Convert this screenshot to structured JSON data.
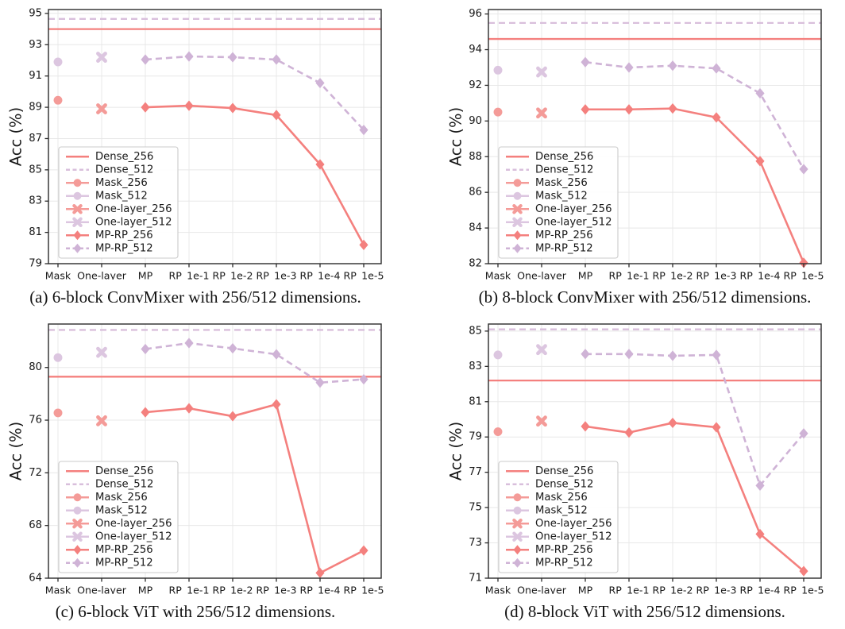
{
  "figure_title": "",
  "series_styles": {
    "Dense_256": {
      "color": "#F4807E",
      "marker": "none",
      "dash": false
    },
    "Dense_512": {
      "color": "#D9BFDC",
      "marker": "none",
      "dash": true
    },
    "Mask_256": {
      "color": "#F49B98",
      "marker": "circle",
      "dash": false
    },
    "Mask_512": {
      "color": "#DCC6E0",
      "marker": "circle",
      "dash": false
    },
    "One-layer_256": {
      "color": "#F49B98",
      "marker": "x",
      "dash": false
    },
    "One-layer_512": {
      "color": "#DCC6E0",
      "marker": "x",
      "dash": false
    },
    "MP-RP_256": {
      "color": "#F4807E",
      "marker": "diamond",
      "dash": false
    },
    "MP-RP_512": {
      "color": "#CFB3D6",
      "marker": "diamond",
      "dash": true
    }
  },
  "legend_order": [
    "Dense_256",
    "Dense_512",
    "Mask_256",
    "Mask_512",
    "One-layer_256",
    "One-layer_512",
    "MP-RP_256",
    "MP-RP_512"
  ],
  "palette": {
    "grid": "#E8E8E8",
    "spine": "#2B2B2B",
    "tick_text": "#191919",
    "legend_border": "#CBCBCB",
    "legend_bg": "rgba(255,255,255,0.92)"
  },
  "chart_data": [
    {
      "type": "line",
      "caption": "(a) 6-block ConvMixer with 256/512 dimensions.",
      "ylabel": "Acc (%)",
      "categories": [
        "Mask",
        "One-layer",
        "MP",
        "RP_1e-1",
        "RP_1e-2",
        "RP_1e-3",
        "RP_1e-4",
        "RP_1e-5"
      ],
      "ylim": [
        79,
        95.25
      ],
      "yticks": [
        79,
        81,
        83,
        85,
        87,
        89,
        91,
        93,
        95
      ],
      "series": [
        {
          "name": "Dense_256",
          "style": "hline",
          "value": 94.0
        },
        {
          "name": "Dense_512",
          "style": "hline",
          "value": 94.65
        },
        {
          "name": "Mask_256",
          "style": "point",
          "category": "Mask",
          "value": 89.45
        },
        {
          "name": "Mask_512",
          "style": "point",
          "category": "Mask",
          "value": 91.9
        },
        {
          "name": "One-layer_256",
          "style": "point",
          "category": "One-layer",
          "value": 88.9
        },
        {
          "name": "One-layer_512",
          "style": "point",
          "category": "One-layer",
          "value": 92.2
        },
        {
          "name": "MP-RP_256",
          "style": "line",
          "start_category": "MP",
          "values": [
            89.0,
            89.1,
            88.95,
            88.5,
            85.35,
            80.2
          ]
        },
        {
          "name": "MP-RP_512",
          "style": "line",
          "start_category": "MP",
          "values": [
            92.05,
            92.25,
            92.2,
            92.05,
            90.55,
            87.55
          ]
        }
      ]
    },
    {
      "type": "line",
      "caption": "(b) 8-block ConvMixer with 256/512 dimensions.",
      "ylabel": "Acc (%)",
      "categories": [
        "Mask",
        "One-layer",
        "MP",
        "RP_1e-1",
        "RP_1e-2",
        "RP_1e-3",
        "RP_1e-4",
        "RP_1e-5"
      ],
      "ylim": [
        82,
        96.25
      ],
      "yticks": [
        82,
        84,
        86,
        88,
        90,
        92,
        94,
        96
      ],
      "series": [
        {
          "name": "Dense_256",
          "style": "hline",
          "value": 94.6
        },
        {
          "name": "Dense_512",
          "style": "hline",
          "value": 95.5
        },
        {
          "name": "Mask_256",
          "style": "point",
          "category": "Mask",
          "value": 90.5
        },
        {
          "name": "Mask_512",
          "style": "point",
          "category": "Mask",
          "value": 92.85
        },
        {
          "name": "One-layer_256",
          "style": "point",
          "category": "One-layer",
          "value": 90.45
        },
        {
          "name": "One-layer_512",
          "style": "point",
          "category": "One-layer",
          "value": 92.75
        },
        {
          "name": "MP-RP_256",
          "style": "line",
          "start_category": "MP",
          "values": [
            90.65,
            90.65,
            90.7,
            90.2,
            87.75,
            82.05
          ]
        },
        {
          "name": "MP-RP_512",
          "style": "line",
          "start_category": "MP",
          "values": [
            93.3,
            93.0,
            93.1,
            92.95,
            91.55,
            87.3
          ]
        }
      ]
    },
    {
      "type": "line",
      "caption": "(c) 6-block ViT with 256/512 dimensions.",
      "ylabel": "Acc (%)",
      "categories": [
        "Mask",
        "One-layer",
        "MP",
        "RP_1e-1",
        "RP_1e-2",
        "RP_1e-3",
        "RP_1e-4",
        "RP_1e-5"
      ],
      "ylim": [
        64,
        83.3
      ],
      "yticks": [
        64,
        68,
        72,
        76,
        80
      ],
      "series": [
        {
          "name": "Dense_256",
          "style": "hline",
          "value": 79.3
        },
        {
          "name": "Dense_512",
          "style": "hline",
          "value": 82.85
        },
        {
          "name": "Mask_256",
          "style": "point",
          "category": "Mask",
          "value": 76.55
        },
        {
          "name": "Mask_512",
          "style": "point",
          "category": "Mask",
          "value": 80.75
        },
        {
          "name": "One-layer_256",
          "style": "point",
          "category": "One-layer",
          "value": 75.95
        },
        {
          "name": "One-layer_512",
          "style": "point",
          "category": "One-layer",
          "value": 81.15
        },
        {
          "name": "MP-RP_256",
          "style": "line",
          "start_category": "MP",
          "values": [
            76.6,
            76.9,
            76.3,
            77.2,
            64.4,
            66.1
          ]
        },
        {
          "name": "MP-RP_512",
          "style": "line",
          "start_category": "MP",
          "values": [
            81.4,
            81.85,
            81.45,
            81.0,
            78.85,
            79.1
          ]
        }
      ]
    },
    {
      "type": "line",
      "caption": "(d) 8-block ViT with 256/512 dimensions.",
      "ylabel": "Acc (%)",
      "categories": [
        "Mask",
        "One-layer",
        "MP",
        "RP_1e-1",
        "RP_1e-2",
        "RP_1e-3",
        "RP_1e-4",
        "RP_1e-5"
      ],
      "ylim": [
        71,
        85.4
      ],
      "yticks": [
        71,
        73,
        75,
        77,
        79,
        81,
        83,
        85
      ],
      "series": [
        {
          "name": "Dense_256",
          "style": "hline",
          "value": 82.2
        },
        {
          "name": "Dense_512",
          "style": "hline",
          "value": 85.1
        },
        {
          "name": "Mask_256",
          "style": "point",
          "category": "Mask",
          "value": 79.3
        },
        {
          "name": "Mask_512",
          "style": "point",
          "category": "Mask",
          "value": 83.65
        },
        {
          "name": "One-layer_256",
          "style": "point",
          "category": "One-layer",
          "value": 79.9
        },
        {
          "name": "One-layer_512",
          "style": "point",
          "category": "One-layer",
          "value": 83.95
        },
        {
          "name": "MP-RP_256",
          "style": "line",
          "start_category": "MP",
          "values": [
            79.6,
            79.25,
            79.8,
            79.55,
            73.5,
            71.4
          ]
        },
        {
          "name": "MP-RP_512",
          "style": "line",
          "start_category": "MP",
          "values": [
            83.7,
            83.7,
            83.6,
            83.65,
            76.25,
            79.2
          ]
        }
      ]
    }
  ]
}
